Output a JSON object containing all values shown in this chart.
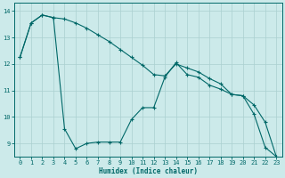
{
  "xlabel": "Humidex (Indice chaleur)",
  "ylabel": "",
  "bg_color": "#cceaea",
  "grid_color": "#aad0d0",
  "line_color": "#006868",
  "xlim": [
    -0.5,
    23.5
  ],
  "ylim": [
    8.5,
    14.3
  ],
  "yticks": [
    9,
    10,
    11,
    12,
    13,
    14
  ],
  "xticks": [
    0,
    1,
    2,
    3,
    4,
    5,
    6,
    7,
    8,
    9,
    10,
    11,
    12,
    13,
    14,
    15,
    16,
    17,
    18,
    19,
    20,
    21,
    22,
    23
  ],
  "series1_x": [
    0,
    1,
    2,
    3,
    4,
    5,
    6,
    7,
    8,
    9,
    10,
    11,
    12,
    13,
    14,
    15,
    16,
    17,
    18,
    19,
    20,
    21,
    22,
    23
  ],
  "series1_y": [
    12.25,
    13.55,
    13.85,
    13.75,
    9.55,
    8.8,
    9.0,
    9.05,
    9.05,
    9.05,
    9.9,
    10.35,
    10.35,
    11.5,
    12.05,
    11.6,
    11.5,
    11.2,
    11.05,
    10.85,
    10.8,
    10.1,
    8.85,
    8.5
  ],
  "series2_x": [
    0,
    1,
    2,
    3,
    4,
    5,
    6,
    7,
    8,
    9,
    10,
    11,
    12,
    13,
    14,
    15,
    16,
    17,
    18,
    19,
    20,
    21,
    22,
    23
  ],
  "series2_y": [
    12.25,
    13.55,
    13.85,
    13.75,
    13.7,
    13.55,
    13.35,
    13.1,
    12.85,
    12.55,
    12.25,
    11.95,
    11.6,
    11.55,
    12.0,
    11.85,
    11.7,
    11.45,
    11.25,
    10.85,
    10.8,
    10.45,
    9.8,
    8.5
  ]
}
